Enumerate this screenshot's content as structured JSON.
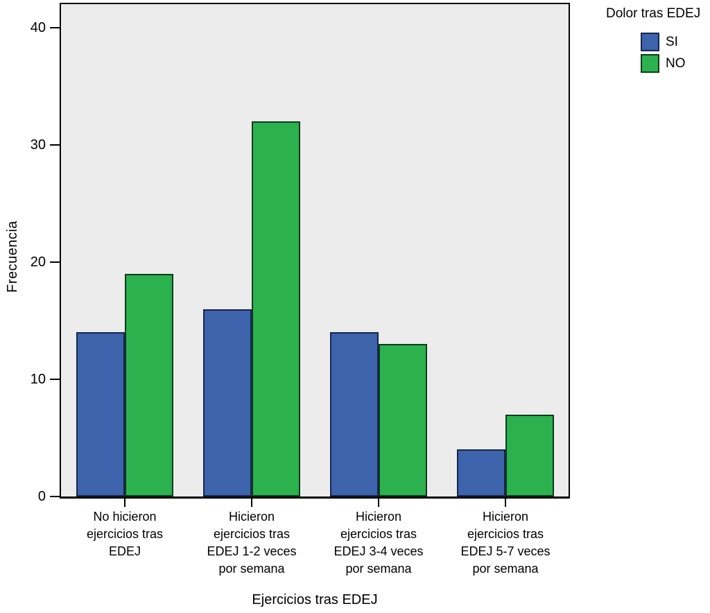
{
  "chart_data": {
    "type": "bar",
    "title": "",
    "xlabel": "Ejercicios tras EDEJ",
    "ylabel": "Frecuencia",
    "legend_title": "Dolor tras EDEJ",
    "legend_position": "top-right",
    "ylim": [
      0,
      42
    ],
    "yticks": [
      0,
      10,
      20,
      30,
      40
    ],
    "grid": false,
    "plot_background": "#ECECEC",
    "frame_color": "#000000",
    "categories": [
      [
        "No hicieron",
        "ejercicios tras",
        "EDEJ"
      ],
      [
        "Hicieron",
        "ejercicios tras",
        "EDEJ 1-2 veces",
        "por semana"
      ],
      [
        "Hicieron",
        "ejercicios tras",
        "EDEJ 3-4 veces",
        "por semana"
      ],
      [
        "Hicieron",
        "ejercicios tras",
        "EDEJ 5-7 veces",
        "por semana"
      ]
    ],
    "series": [
      {
        "name": "SI",
        "color": "#3C63AC",
        "border_color": "#18244A",
        "values": [
          14,
          16,
          14,
          4
        ]
      },
      {
        "name": "NO",
        "color": "#2BB14E",
        "border_color": "#0E3A1C",
        "values": [
          19,
          32,
          13,
          7
        ]
      }
    ]
  }
}
